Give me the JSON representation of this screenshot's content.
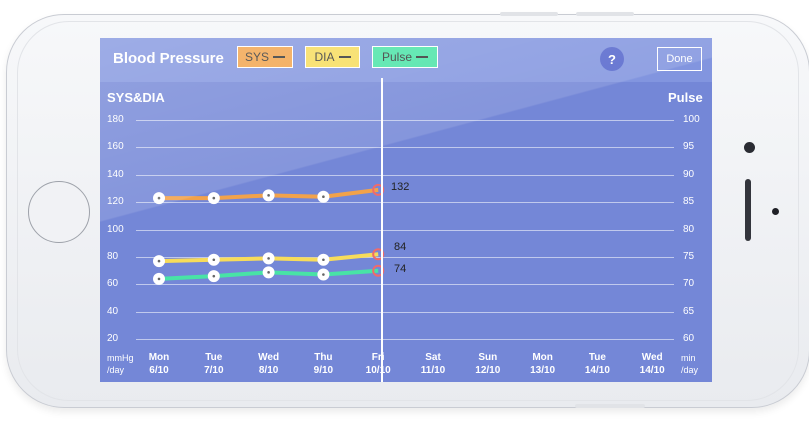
{
  "header": {
    "title": "Blood Pressure",
    "legend": [
      {
        "label": "SYS",
        "color": "#f2a24a"
      },
      {
        "label": "DIA",
        "color": "#f7dc5a"
      },
      {
        "label": "Pulse",
        "color": "#48e3a6"
      }
    ],
    "help_label": "?",
    "done_label": "Done"
  },
  "axes": {
    "left_title": "SYS&DIA",
    "right_title": "Pulse",
    "left_ticks": [
      "180",
      "160",
      "140",
      "120",
      "100",
      "80",
      "60",
      "40",
      "20"
    ],
    "right_ticks": [
      "100",
      "95",
      "90",
      "85",
      "80",
      "75",
      "70",
      "65",
      "60"
    ],
    "left_unit": [
      "mmHg",
      "/day"
    ],
    "right_unit": [
      "min",
      "/day"
    ]
  },
  "days": [
    {
      "dow": "Mon",
      "date": "6/10"
    },
    {
      "dow": "Tue",
      "date": "7/10"
    },
    {
      "dow": "Wed",
      "date": "8/10"
    },
    {
      "dow": "Thu",
      "date": "9/10"
    },
    {
      "dow": "Fri",
      "date": "10/10"
    },
    {
      "dow": "Sat",
      "date": "11/10"
    },
    {
      "dow": "Sun",
      "date": "12/10"
    },
    {
      "dow": "Mon",
      "date": "13/10"
    },
    {
      "dow": "Tue",
      "date": "14/10"
    },
    {
      "dow": "Wed",
      "date": "14/10"
    }
  ],
  "chart_data": {
    "type": "line",
    "title": "Blood Pressure",
    "xlabel": "",
    "ylabel": "SYS&DIA",
    "ylabel_right": "Pulse",
    "ylim": [
      20,
      180
    ],
    "ylim_right": [
      60,
      100
    ],
    "categories": [
      "6/10",
      "7/10",
      "8/10",
      "9/10",
      "10/10",
      "11/10",
      "12/10",
      "13/10",
      "14/10",
      "14/10"
    ],
    "series": [
      {
        "name": "SYS",
        "axis": "left",
        "color": "#f2a24a",
        "values": [
          123,
          123,
          125,
          124,
          129,
          null,
          null,
          null,
          null,
          null
        ]
      },
      {
        "name": "DIA",
        "axis": "left",
        "color": "#f7dc5a",
        "values": [
          77,
          78,
          79,
          78,
          82,
          null,
          null,
          null,
          null,
          null
        ]
      },
      {
        "name": "Pulse",
        "axis": "right",
        "color": "#48e3a6",
        "values": [
          71,
          71.5,
          72.2,
          71.8,
          72.5,
          null,
          null,
          null,
          null,
          null
        ]
      }
    ],
    "annotations": [
      "132",
      "84",
      "74"
    ],
    "selected_category": "10/10",
    "grid": true
  }
}
